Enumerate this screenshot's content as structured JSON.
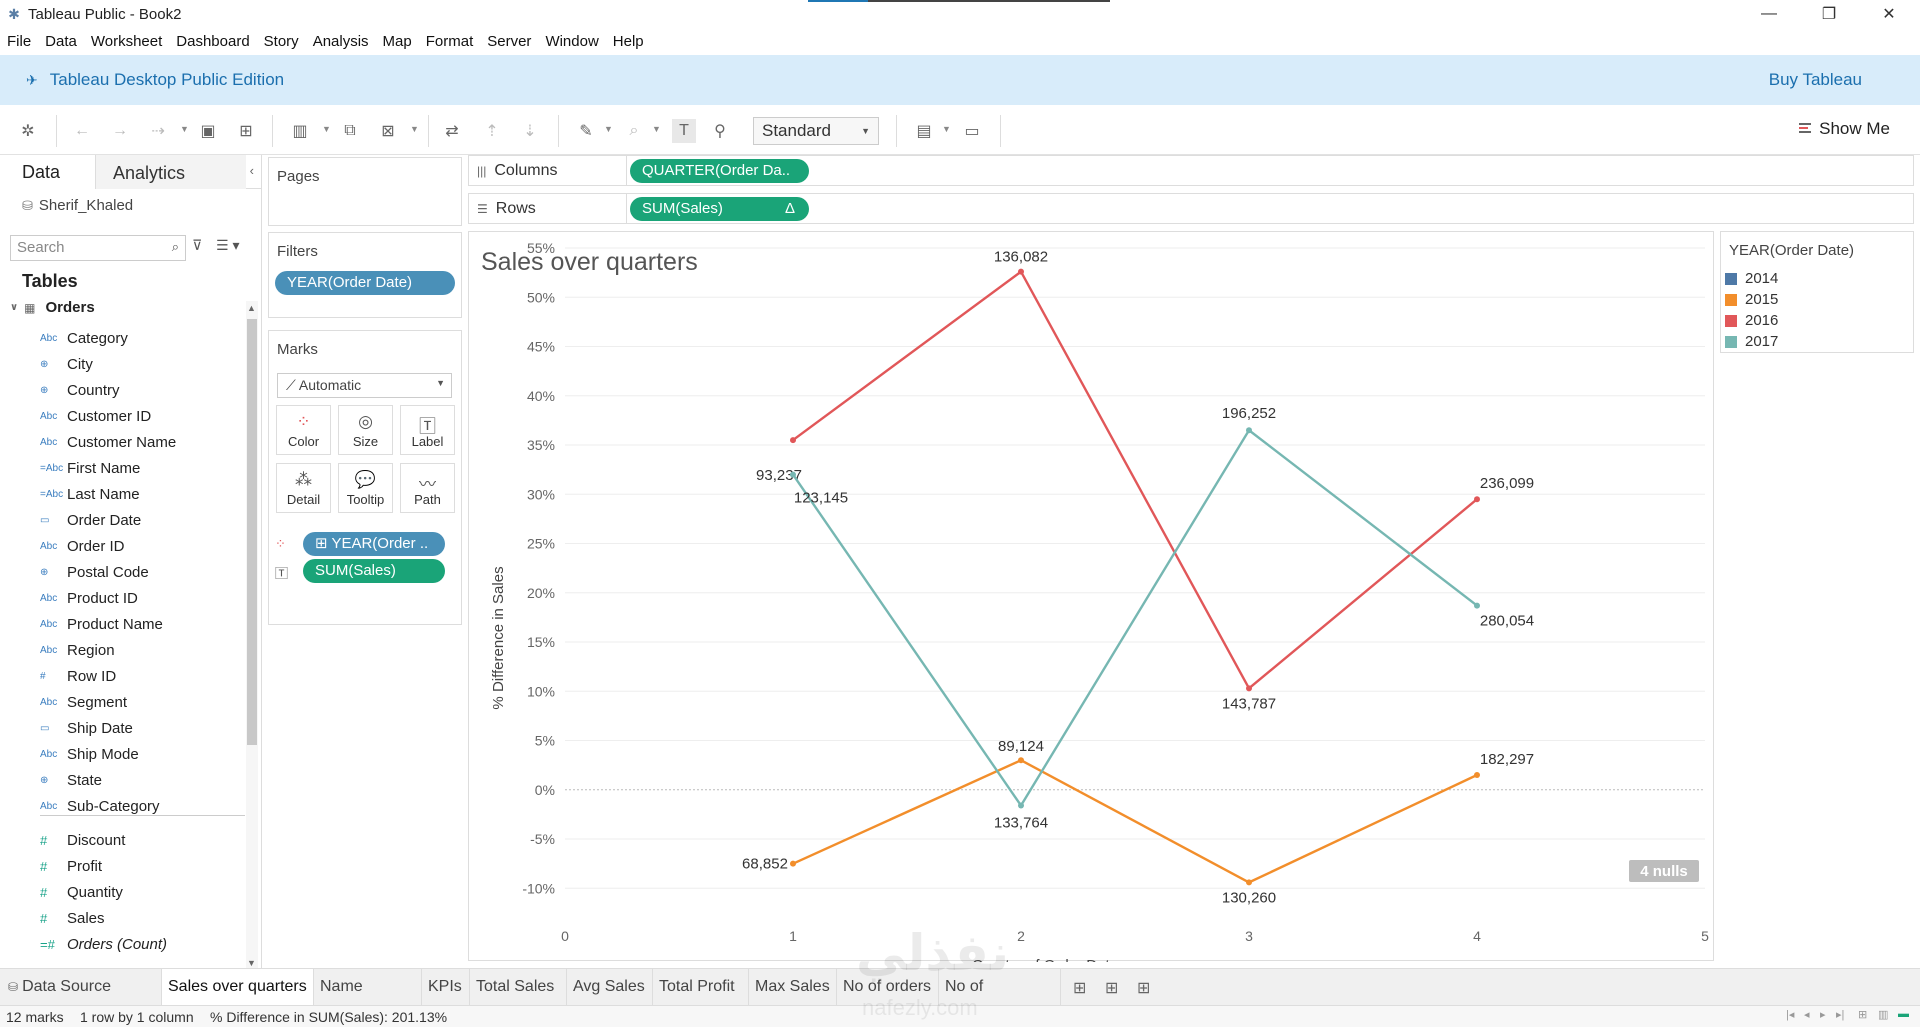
{
  "window": {
    "title": "Tableau Public - Book2",
    "controls": [
      "—",
      "❐",
      "✕"
    ]
  },
  "menu": [
    "File",
    "Data",
    "Worksheet",
    "Dashboard",
    "Story",
    "Analysis",
    "Map",
    "Format",
    "Server",
    "Window",
    "Help"
  ],
  "banner": {
    "edition": "Tableau Desktop Public Edition",
    "buy": "Buy Tableau"
  },
  "toolbar": {
    "fit": "Standard",
    "show_me": "Show Me"
  },
  "data_pane": {
    "tab_data": "Data",
    "tab_analytics": "Analytics",
    "connection": "Sherif_Khaled",
    "search_placeholder": "Search",
    "tables_title": "Tables",
    "table_name": "Orders",
    "dimensions": [
      {
        "icon": "Abc",
        "name": "Category"
      },
      {
        "icon": "⊕",
        "name": "City"
      },
      {
        "icon": "⊕",
        "name": "Country"
      },
      {
        "icon": "Abc",
        "name": "Customer ID"
      },
      {
        "icon": "Abc",
        "name": "Customer Name"
      },
      {
        "icon": "=Abc",
        "name": "First Name"
      },
      {
        "icon": "=Abc",
        "name": "Last Name"
      },
      {
        "icon": "▭",
        "name": "Order Date"
      },
      {
        "icon": "Abc",
        "name": "Order ID"
      },
      {
        "icon": "⊕",
        "name": "Postal Code"
      },
      {
        "icon": "Abc",
        "name": "Product ID"
      },
      {
        "icon": "Abc",
        "name": "Product Name"
      },
      {
        "icon": "Abc",
        "name": "Region"
      },
      {
        "icon": "#",
        "name": "Row ID"
      },
      {
        "icon": "Abc",
        "name": "Segment"
      },
      {
        "icon": "▭",
        "name": "Ship Date"
      },
      {
        "icon": "Abc",
        "name": "Ship Mode"
      },
      {
        "icon": "⊕",
        "name": "State"
      },
      {
        "icon": "Abc",
        "name": "Sub-Category"
      }
    ],
    "measures": [
      {
        "icon": "#",
        "name": "Discount"
      },
      {
        "icon": "#",
        "name": "Profit"
      },
      {
        "icon": "#",
        "name": "Quantity"
      },
      {
        "icon": "#",
        "name": "Sales"
      },
      {
        "icon": "=#",
        "name": "Orders (Count)",
        "italic": true
      }
    ]
  },
  "cards": {
    "pages_title": "Pages",
    "filters_title": "Filters",
    "filter_pill": "YEAR(Order Date)",
    "marks_title": "Marks",
    "mark_type": "Automatic",
    "mark_buttons": [
      "Color",
      "Size",
      "Label",
      "Detail",
      "Tooltip",
      "Path"
    ],
    "mark_pills": [
      "⊞ YEAR(Order ..",
      "SUM(Sales)"
    ]
  },
  "shelves": {
    "columns_label": "Columns",
    "columns_pill": "QUARTER(Order Da..",
    "rows_label": "Rows",
    "rows_pill": "SUM(Sales)",
    "rows_delta": "Δ"
  },
  "legend": {
    "title": "YEAR(Order Date)",
    "items": [
      {
        "label": "2014",
        "color": "#4e79a7"
      },
      {
        "label": "2015",
        "color": "#f28e2b"
      },
      {
        "label": "2016",
        "color": "#e15759"
      },
      {
        "label": "2017",
        "color": "#76b7b2"
      }
    ]
  },
  "chart_data": {
    "type": "line",
    "title": "Sales over quarters",
    "xlabel": "Quarter of Order Date",
    "ylabel": "% Difference in Sales",
    "xlim": [
      0,
      5
    ],
    "ylim": [
      -12,
      55
    ],
    "x_ticks": [
      0,
      1,
      2,
      3,
      4,
      5
    ],
    "y_ticks": [
      "55%",
      "50%",
      "45%",
      "40%",
      "35%",
      "30%",
      "25%",
      "20%",
      "15%",
      "10%",
      "5%",
      "0%",
      "-5%",
      "-10%"
    ],
    "y_tick_values": [
      55,
      50,
      45,
      40,
      35,
      30,
      25,
      20,
      15,
      10,
      5,
      0,
      -5,
      -10
    ],
    "series": [
      {
        "name": "2015",
        "color": "#f28e2b",
        "x": [
          1,
          2,
          3,
          4
        ],
        "y": [
          -7.5,
          3.0,
          -9.4,
          1.5
        ],
        "labels": [
          "68,852",
          "89,124",
          "130,260",
          "182,297"
        ]
      },
      {
        "name": "2016",
        "color": "#e15759",
        "x": [
          1,
          2,
          3,
          4
        ],
        "y": [
          35.5,
          52.6,
          10.3,
          29.5
        ],
        "labels": [
          "93,237",
          "136,082",
          "143,787",
          "236,099"
        ]
      },
      {
        "name": "2017",
        "color": "#76b7b2",
        "x": [
          1,
          2,
          3,
          4
        ],
        "y": [
          32.0,
          -1.6,
          36.5,
          18.7
        ],
        "labels": [
          "123,145",
          "133,764",
          "196,252",
          "280,054"
        ]
      }
    ],
    "nulls_badge": "4 nulls"
  },
  "sheet_tabs": {
    "data_source": "Data Source",
    "sheets": [
      "Sales over quarters",
      "Name splitting",
      "KPIs",
      "Total Sales",
      "Avg Sales",
      "Total Profit",
      "Max Sales",
      "No of orders",
      "No of customers"
    ],
    "active_index": 0
  },
  "status": {
    "marks": "12 marks",
    "layout": "1 row by 1 column",
    "summary": "% Difference in SUM(Sales): 201.13%"
  },
  "watermark": {
    "main": "نفذلي",
    "sub": "nafezly.com"
  }
}
